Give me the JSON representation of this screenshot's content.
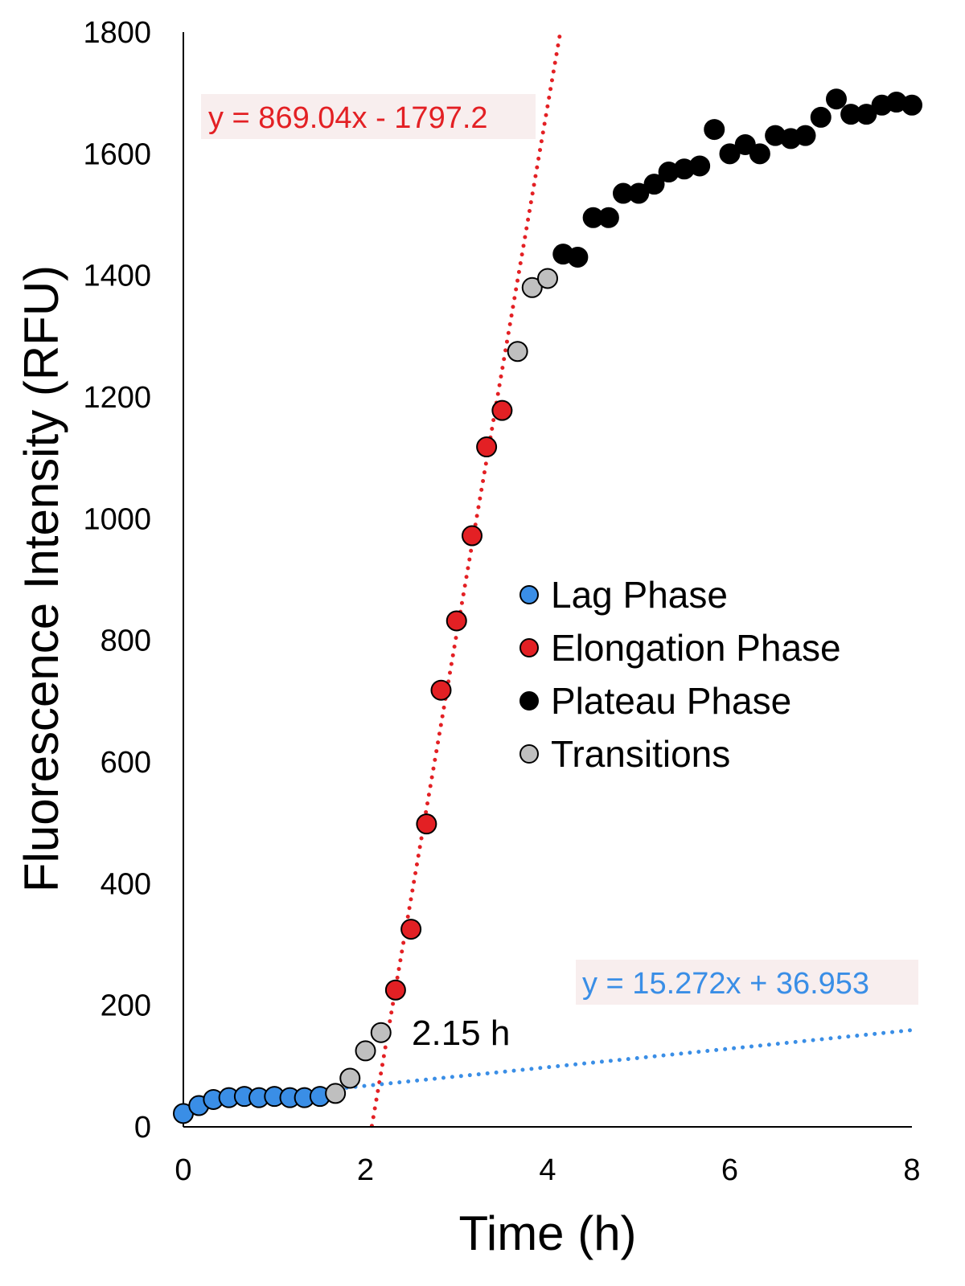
{
  "chart_data": {
    "type": "scatter",
    "xlabel": "Time (h)",
    "ylabel": "Fluorescence Intensity (RFU)",
    "xlim": [
      0,
      8
    ],
    "ylim": [
      0,
      1800
    ],
    "x_ticks": [
      "0",
      "2",
      "4",
      "6",
      "8"
    ],
    "y_ticks": [
      "0",
      "200",
      "400",
      "600",
      "800",
      "1000",
      "1200",
      "1400",
      "1600",
      "1800"
    ],
    "grid": false,
    "legend_position": "center-right",
    "series": [
      {
        "name": "Lag Phase",
        "color": "#3a8ee6",
        "x": [
          0,
          0.17,
          0.33,
          0.5,
          0.67,
          0.83,
          1.0,
          1.17,
          1.33,
          1.5
        ],
        "y": [
          22,
          35,
          45,
          48,
          50,
          48,
          50,
          48,
          48,
          50
        ]
      },
      {
        "name": "Elongation Phase",
        "color": "#e32024",
        "x": [
          2.33,
          2.5,
          2.67,
          2.83,
          3.0,
          3.17,
          3.33,
          3.5
        ],
        "y": [
          225,
          325,
          498,
          718,
          832,
          972,
          1118,
          1178
        ]
      },
      {
        "name": "Plateau Phase",
        "color": "#000000",
        "x": [
          4.17,
          4.33,
          4.5,
          4.67,
          4.83,
          5.0,
          5.17,
          5.33,
          5.5,
          5.67,
          5.83,
          6.0,
          6.17,
          6.33,
          6.5,
          6.67,
          6.83,
          7.0,
          7.17,
          7.33,
          7.5,
          7.67,
          7.83,
          8.0
        ],
        "y": [
          1435,
          1430,
          1495,
          1495,
          1535,
          1535,
          1550,
          1570,
          1575,
          1580,
          1640,
          1600,
          1615,
          1600,
          1630,
          1625,
          1630,
          1660,
          1690,
          1665,
          1665,
          1680,
          1685,
          1680
        ]
      },
      {
        "name": "Transitions",
        "color": "#bfbfbf",
        "x": [
          1.67,
          1.83,
          2.0,
          2.17,
          3.67,
          3.83,
          4.0
        ],
        "y": [
          55,
          80,
          125,
          155,
          1275,
          1380,
          1395
        ]
      }
    ],
    "trendlines": [
      {
        "name": "elongation-fit",
        "color": "#e32024",
        "slope": 869.04,
        "intercept": -1797.2,
        "x_range": [
          2.07,
          4.14
        ],
        "equation": "y = 869.04x - 1797.2"
      },
      {
        "name": "lag-fit",
        "color": "#3a8ee6",
        "slope": 15.272,
        "intercept": 36.953,
        "x_range": [
          1.6,
          8.0
        ],
        "equation": "y = 15.272x + 36.953"
      }
    ],
    "annotations": [
      {
        "text": "2.15 h"
      }
    ]
  }
}
